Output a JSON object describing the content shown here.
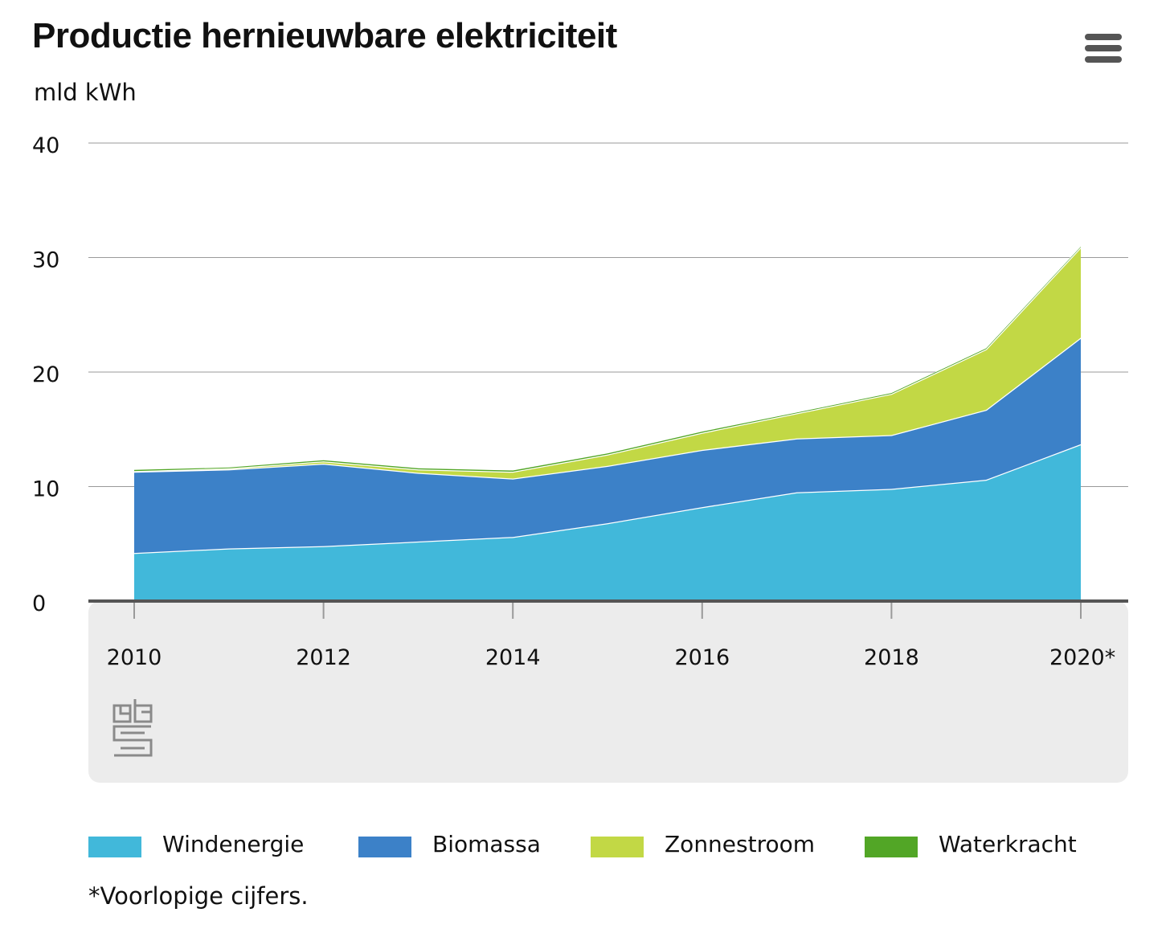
{
  "title": "Productie hernieuwbare elektriciteit",
  "unit_label": "mld kWh",
  "footnote": "*Voorlopige cijfers.",
  "menu_icon": "hamburger-menu-icon",
  "logo": {
    "icon": "cbs-logo-icon",
    "text": "cbs"
  },
  "colors": {
    "windenergie": "#41b8da",
    "biomassa": "#3c81c8",
    "zonnestroom": "#c2d845",
    "waterkracht": "#52a626",
    "grid": "#9a9a9a",
    "axis": "#555555",
    "panel": "#ececec"
  },
  "chart_data": {
    "type": "area",
    "stacked": true,
    "x": [
      2010,
      2011,
      2012,
      2013,
      2014,
      2015,
      2016,
      2017,
      2018,
      2019,
      2020
    ],
    "tick_labels": [
      "2010",
      "2012",
      "2014",
      "2016",
      "2018",
      "2020*"
    ],
    "y_ticks": [
      "0",
      "10",
      "20",
      "30",
      "40"
    ],
    "ylim": [
      0,
      40
    ],
    "series": [
      {
        "name": "Windenergie",
        "color": "#41b8da",
        "values": [
          4.2,
          4.6,
          4.8,
          5.2,
          5.6,
          6.8,
          8.2,
          9.5,
          9.8,
          10.6,
          13.7
        ]
      },
      {
        "name": "Biomassa",
        "color": "#3c81c8",
        "values": [
          7.1,
          6.9,
          7.2,
          6.0,
          5.1,
          5.0,
          5.0,
          4.7,
          4.7,
          6.1,
          9.3
        ]
      },
      {
        "name": "Zonnestroom",
        "color": "#c2d845",
        "values": [
          0.05,
          0.1,
          0.2,
          0.3,
          0.6,
          1.0,
          1.5,
          2.2,
          3.6,
          5.3,
          7.9
        ]
      },
      {
        "name": "Waterkracht",
        "color": "#52a626",
        "values": [
          0.1,
          0.06,
          0.1,
          0.1,
          0.1,
          0.1,
          0.1,
          0.06,
          0.07,
          0.07,
          0.05
        ]
      }
    ]
  }
}
